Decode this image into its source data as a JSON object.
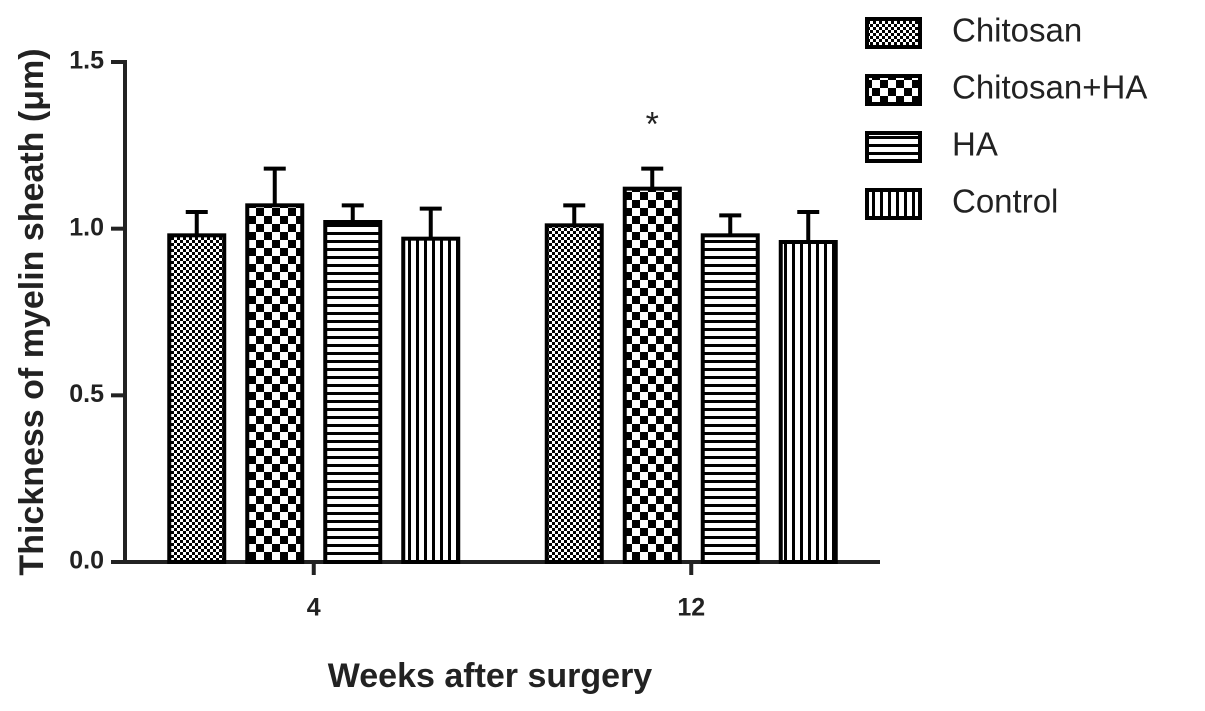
{
  "chart_data": {
    "type": "bar",
    "x_label": "Weeks after surgery",
    "y_label": "Thickness of myelin sheath (μm)",
    "categories": [
      "4",
      "12"
    ],
    "series": [
      {
        "name": "Chitosan",
        "color": "#000000",
        "pattern": "fine-check",
        "values": [
          0.98,
          1.01
        ],
        "errors": [
          0.07,
          0.06
        ]
      },
      {
        "name": "Chitosan+HA",
        "color": "#000000",
        "pattern": "check",
        "values": [
          1.07,
          1.12
        ],
        "errors": [
          0.11,
          0.06
        ]
      },
      {
        "name": "HA",
        "color": "#000000",
        "pattern": "hlines",
        "values": [
          1.02,
          0.98
        ],
        "errors": [
          0.05,
          0.06
        ]
      },
      {
        "name": "Control",
        "color": "#000000",
        "pattern": "vlines",
        "values": [
          0.97,
          0.96
        ],
        "errors": [
          0.09,
          0.09
        ]
      }
    ],
    "annotations": [
      {
        "text": "*",
        "category": "12",
        "series": "Chitosan+HA"
      }
    ],
    "ylim": [
      0,
      1.5
    ],
    "yticks": [
      {
        "value": 0,
        "label": "0.0"
      },
      0.5,
      {
        "value": 1,
        "label": "1.0"
      },
      1.5
    ],
    "grid": false,
    "legend": "right"
  }
}
